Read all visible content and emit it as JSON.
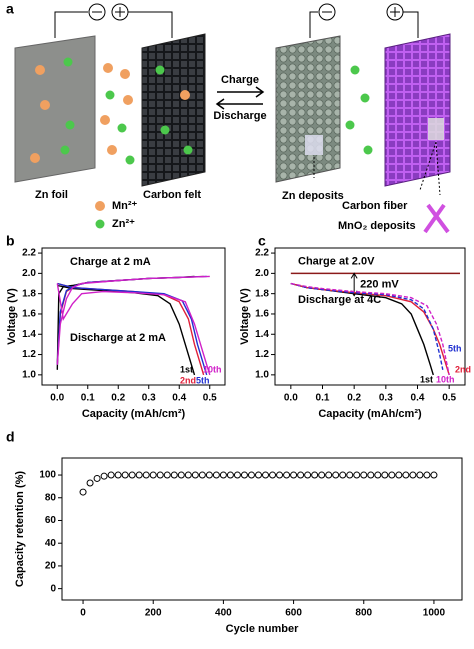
{
  "schematic": {
    "label": "a",
    "zn_foil": "Zn foil",
    "carbon_felt": "Carbon felt",
    "mn_ion": "Mn²⁺",
    "zn_ion": "Zn²⁺",
    "charge": "Charge",
    "discharge": "Discharge",
    "zn_deposits": "Zn deposits",
    "carbon_fiber": "Carbon fiber",
    "mno2_deposits": "MnO₂ deposits"
  },
  "chart_data": [
    {
      "type": "line",
      "label": "b",
      "xlabel": "Capacity (mAh/cm²)",
      "ylabel": "Voltage (V)",
      "annotations": [
        "Charge at 2 mA",
        "Discharge at 2 mA"
      ],
      "xlim": [
        -0.05,
        0.55
      ],
      "ylim": [
        0.9,
        2.25
      ],
      "xticks": [
        {
          "value": 0.0,
          "label": "0.0"
        },
        0.1,
        0.2,
        0.3,
        0.4,
        0.5
      ],
      "yticks": [
        {
          "value": 1.0,
          "label": "1.0"
        },
        1.2,
        1.4,
        1.6,
        1.8,
        {
          "value": 2.0,
          "label": "2.0"
        },
        2.2
      ],
      "series": [
        {
          "name": "1st",
          "color": "#000000",
          "x": [
            0,
            0.005,
            0.02,
            0.05,
            0.1,
            0.2,
            0.3,
            0.4,
            0.45,
            null,
            0,
            0.05,
            0.15,
            0.25,
            0.33,
            0.37,
            0.4,
            0.42,
            0.44,
            0.45
          ],
          "values": [
            1.05,
            1.8,
            1.87,
            1.88,
            1.91,
            1.93,
            1.95,
            1.96,
            1.97,
            null,
            1.88,
            1.85,
            1.83,
            1.81,
            1.78,
            1.7,
            1.5,
            1.3,
            1.1,
            1.0
          ]
        },
        {
          "name": "2nd",
          "color": "#e0203a",
          "x": [
            0,
            0.01,
            0.03,
            0.06,
            0.1,
            0.2,
            0.3,
            0.4,
            0.48,
            null,
            0,
            0.05,
            0.15,
            0.25,
            0.35,
            0.4,
            0.43,
            0.45,
            0.47,
            0.48
          ],
          "values": [
            1.1,
            1.6,
            1.82,
            1.88,
            1.91,
            1.93,
            1.95,
            1.96,
            1.97,
            null,
            1.9,
            1.86,
            1.84,
            1.82,
            1.79,
            1.72,
            1.55,
            1.3,
            1.1,
            1.0
          ]
        },
        {
          "name": "5th",
          "color": "#2030d0",
          "x": [
            0,
            0.01,
            0.03,
            0.06,
            0.1,
            0.2,
            0.3,
            0.4,
            0.49,
            null,
            0,
            0.05,
            0.15,
            0.25,
            0.35,
            0.41,
            0.44,
            0.46,
            0.48,
            0.49
          ],
          "values": [
            1.1,
            1.62,
            1.83,
            1.88,
            1.91,
            1.93,
            1.95,
            1.96,
            1.97,
            null,
            1.9,
            1.86,
            1.84,
            1.82,
            1.8,
            1.73,
            1.55,
            1.3,
            1.1,
            1.0
          ]
        },
        {
          "name": "10th",
          "color": "#d020c8",
          "x": [
            0,
            0.01,
            0.03,
            0.05,
            0.08,
            0.2,
            0.3,
            0.4,
            0.5,
            null,
            0,
            0.02,
            0.05,
            0.08,
            0.15,
            0.25,
            0.35,
            0.42,
            0.45,
            0.48,
            0.5
          ],
          "values": [
            1.1,
            1.5,
            1.75,
            1.86,
            1.9,
            1.93,
            1.95,
            1.96,
            1.97,
            null,
            1.9,
            1.55,
            1.7,
            1.8,
            1.82,
            1.81,
            1.79,
            1.72,
            1.5,
            1.2,
            1.0
          ]
        }
      ]
    },
    {
      "type": "line",
      "label": "c",
      "xlabel": "Capacity (mAh/cm²)",
      "ylabel": "Voltage (V)",
      "annotations": [
        "Discharge at 4C"
      ],
      "hline": {
        "label": "Charge at 2.0V",
        "value": 2.0,
        "color": "#8b1a1a"
      },
      "arrow": {
        "label": "220 mV",
        "x": 0.2,
        "from": 2.0,
        "to": 1.78
      },
      "xlim": [
        -0.05,
        0.55
      ],
      "ylim": [
        0.9,
        2.25
      ],
      "xticks": [
        {
          "value": 0.0,
          "label": "0.0"
        },
        0.1,
        0.2,
        0.3,
        0.4,
        0.5
      ],
      "yticks": [
        {
          "value": 1.0,
          "label": "1.0"
        },
        1.2,
        1.4,
        1.6,
        1.8,
        {
          "value": 2.0,
          "label": "2.0"
        },
        2.2
      ],
      "series": [
        {
          "name": "1st",
          "color": "#000000",
          "dashed": false,
          "x": [
            0,
            0.05,
            0.1,
            0.2,
            0.3,
            0.35,
            0.38,
            0.4,
            0.42,
            0.44,
            0.45
          ],
          "values": [
            1.9,
            1.86,
            1.84,
            1.8,
            1.76,
            1.7,
            1.6,
            1.45,
            1.3,
            1.1,
            1.0
          ]
        },
        {
          "name": "2nd",
          "color": "#e0203a",
          "dashed": false,
          "x": [
            0,
            0.05,
            0.1,
            0.2,
            0.3,
            0.38,
            0.42,
            0.45,
            0.47,
            0.49,
            0.5
          ],
          "values": [
            1.9,
            1.86,
            1.84,
            1.81,
            1.78,
            1.72,
            1.62,
            1.45,
            1.3,
            1.1,
            1.0
          ]
        },
        {
          "name": "5th",
          "color": "#2030d0",
          "dashed": true,
          "x": [
            0,
            0.05,
            0.1,
            0.2,
            0.3,
            0.38,
            0.42,
            0.45,
            0.47,
            0.48
          ],
          "values": [
            1.9,
            1.86,
            1.84,
            1.81,
            1.79,
            1.74,
            1.65,
            1.45,
            1.2,
            1.05
          ]
        },
        {
          "name": "10th",
          "color": "#d020c8",
          "dashed": true,
          "x": [
            0,
            0.05,
            0.1,
            0.2,
            0.3,
            0.38,
            0.43,
            0.46,
            0.48,
            0.5
          ],
          "values": [
            1.9,
            1.87,
            1.85,
            1.82,
            1.8,
            1.76,
            1.68,
            1.5,
            1.3,
            1.0
          ]
        }
      ]
    },
    {
      "type": "scatter",
      "label": "d",
      "xlabel": "Cycle number",
      "ylabel": "Capacity retention (%)",
      "xlim": [
        -60,
        1080
      ],
      "ylim": [
        -10,
        115
      ],
      "xticks": [
        0,
        200,
        400,
        600,
        800,
        1000
      ],
      "yticks": [
        0,
        20,
        40,
        60,
        80,
        100
      ],
      "color": "#000000",
      "x": [
        0,
        20,
        40,
        60,
        80,
        100,
        120,
        140,
        160,
        180,
        200,
        220,
        240,
        260,
        280,
        300,
        320,
        340,
        360,
        380,
        400,
        420,
        440,
        460,
        480,
        500,
        520,
        540,
        560,
        580,
        600,
        620,
        640,
        660,
        680,
        700,
        720,
        740,
        760,
        780,
        800,
        820,
        840,
        860,
        880,
        900,
        920,
        940,
        960,
        980,
        1000
      ],
      "values": [
        85,
        93,
        97,
        99,
        100,
        100,
        100,
        100,
        100,
        100,
        100,
        100,
        100,
        100,
        100,
        100,
        100,
        100,
        100,
        100,
        100,
        100,
        100,
        100,
        100,
        100,
        100,
        100,
        100,
        100,
        100,
        100,
        100,
        100,
        100,
        100,
        100,
        100,
        100,
        100,
        100,
        100,
        100,
        100,
        100,
        100,
        100,
        100,
        100,
        100,
        100
      ]
    }
  ]
}
